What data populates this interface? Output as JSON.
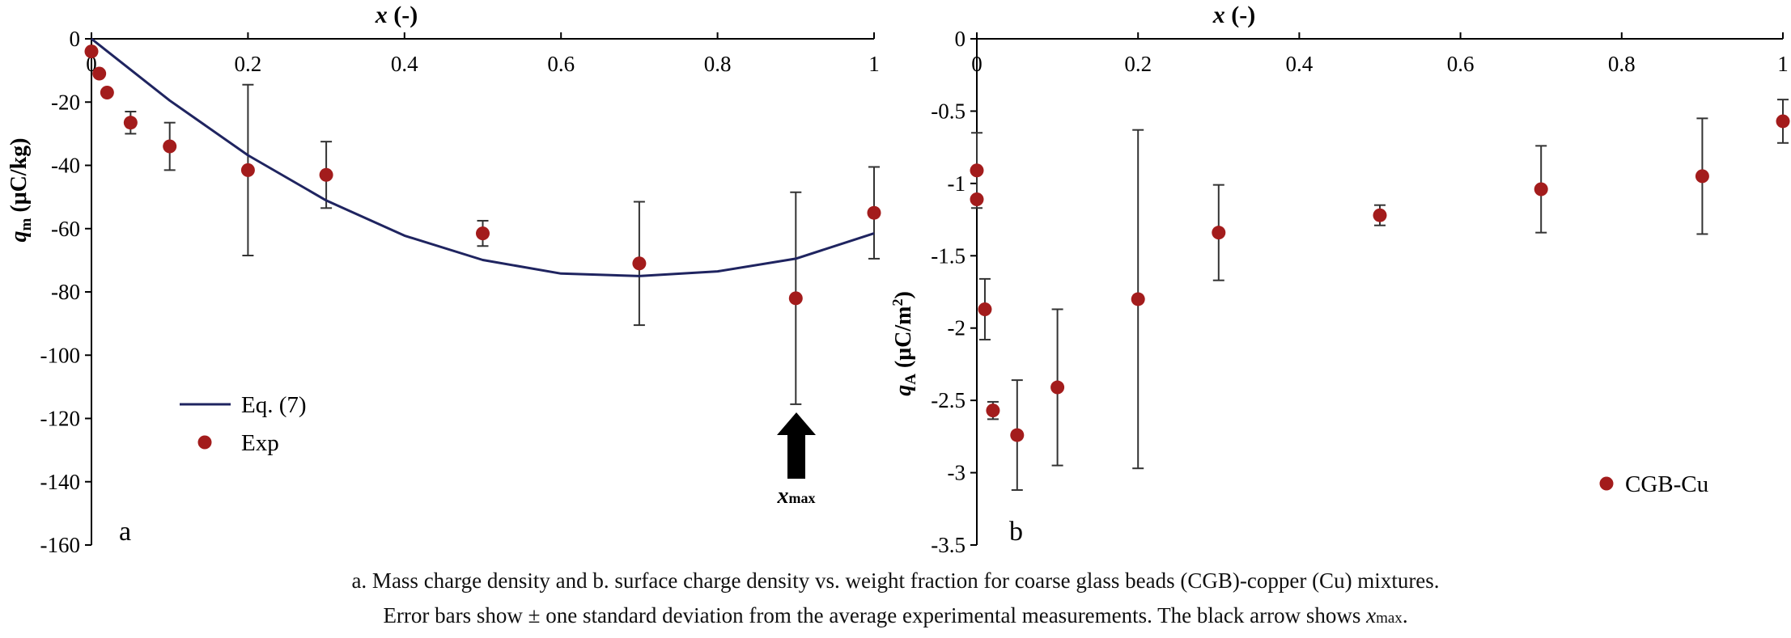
{
  "colors": {
    "marker": "#a31c1c",
    "curve": "#1f2460",
    "axis": "#000000"
  },
  "chart_data": [
    {
      "panel_label": "a",
      "type": "scatter",
      "xlabel": "x (-)",
      "xlabel_var": "x",
      "xlabel_unit": " (-)",
      "ylabel_var": "q",
      "ylabel_sub": "m",
      "ylabel_unit": " (μC/kg)",
      "xlim": [
        0,
        1
      ],
      "ylim": [
        -160,
        0
      ],
      "x_ticks": [
        "0",
        "0.2",
        "0.4",
        "0.6",
        "0.8",
        "1"
      ],
      "y_ticks": [
        "0",
        "-20",
        "-40",
        "-60",
        "-80",
        "-100",
        "-120",
        "-140",
        "-160"
      ],
      "legend": {
        "position": "bottom-left",
        "entries": [
          "Eq. (7)",
          "Exp"
        ]
      },
      "series": [
        {
          "name": "Exp",
          "kind": "scatter-errorbar",
          "points": [
            {
              "x": 0.0,
              "y": -4.0,
              "err": 0
            },
            {
              "x": 0.01,
              "y": -11.0,
              "err": 0
            },
            {
              "x": 0.02,
              "y": -17.0,
              "err": 0
            },
            {
              "x": 0.05,
              "y": -26.5,
              "err": 3.5
            },
            {
              "x": 0.1,
              "y": -34.0,
              "err": 7.5
            },
            {
              "x": 0.2,
              "y": -41.5,
              "err": 27.0
            },
            {
              "x": 0.3,
              "y": -43.0,
              "err": 10.5
            },
            {
              "x": 0.5,
              "y": -61.5,
              "err": 4.0
            },
            {
              "x": 0.7,
              "y": -71.0,
              "err": 19.5
            },
            {
              "x": 0.9,
              "y": -82.0,
              "err": 33.5
            },
            {
              "x": 1.0,
              "y": -55.0,
              "err": 14.5
            }
          ]
        },
        {
          "name": "Eq. (7)",
          "kind": "line",
          "x": [
            0.0,
            0.1,
            0.2,
            0.3,
            0.4,
            0.5,
            0.6,
            0.7,
            0.8,
            0.9,
            1.0
          ],
          "y": [
            0.0,
            -19.5,
            -36.8,
            -51.1,
            -62.2,
            -69.9,
            -74.2,
            -75.0,
            -73.5,
            -69.5,
            -61.5
          ]
        }
      ],
      "annotation": {
        "text_var": "x",
        "text_sub": "max",
        "arrow_at_x": 0.9,
        "direction": "up"
      }
    },
    {
      "panel_label": "b",
      "type": "scatter",
      "xlabel": "x (-)",
      "xlabel_var": "x",
      "xlabel_unit": " (-)",
      "ylabel_var": "q",
      "ylabel_sub": "A",
      "ylabel_unit": " (μC/m",
      "ylabel_sup": "2",
      "ylabel_close": ")",
      "xlim": [
        0,
        1
      ],
      "ylim": [
        -3.5,
        0
      ],
      "x_ticks": [
        "0",
        "0.2",
        "0.4",
        "0.6",
        "0.8",
        "1"
      ],
      "y_ticks": [
        "0",
        "-0.5",
        "-1",
        "-1.5",
        "-2",
        "-2.5",
        "-3",
        "-3.5"
      ],
      "legend": {
        "position": "bottom-right",
        "entries": [
          "CGB-Cu"
        ]
      },
      "series": [
        {
          "name": "CGB-Cu",
          "kind": "scatter-errorbar",
          "points": [
            {
              "x": 0.0,
              "y": -0.91,
              "err": 0.26
            },
            {
              "x": 0.0,
              "y": -1.11,
              "err": 0
            },
            {
              "x": 0.01,
              "y": -1.87,
              "err": 0.21
            },
            {
              "x": 0.02,
              "y": -2.57,
              "err": 0.06
            },
            {
              "x": 0.05,
              "y": -2.74,
              "err": 0.38
            },
            {
              "x": 0.1,
              "y": -2.41,
              "err": 0.54
            },
            {
              "x": 0.2,
              "y": -1.8,
              "err": 1.17
            },
            {
              "x": 0.3,
              "y": -1.34,
              "err": 0.33
            },
            {
              "x": 0.5,
              "y": -1.22,
              "err": 0.07
            },
            {
              "x": 0.7,
              "y": -1.04,
              "err": 0.3
            },
            {
              "x": 0.9,
              "y": -0.95,
              "err": 0.4
            },
            {
              "x": 1.0,
              "y": -0.57,
              "err": 0.15
            }
          ]
        }
      ]
    }
  ],
  "caption": {
    "line1": "a. Mass charge density and b. surface charge density vs. weight fraction for coarse glass beads (CGB)-copper (Cu) mixtures.",
    "line2_prefix": "Error bars show ± one standard deviation from the average experimental measurements. The black arrow shows ",
    "line2_var": "x",
    "line2_sub": "max",
    "line2_suffix": "."
  }
}
